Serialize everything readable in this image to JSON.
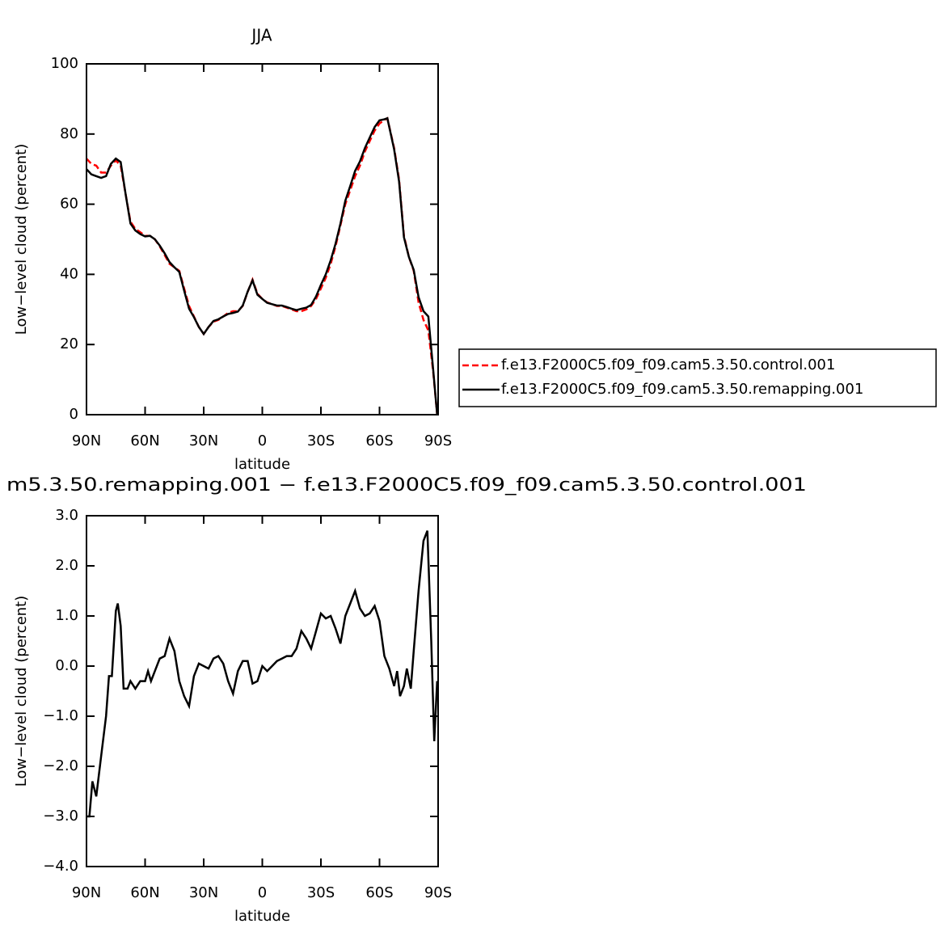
{
  "chart_data": [
    {
      "type": "line",
      "title": "JJA",
      "xlabel": "latitude",
      "ylabel": "Low−level cloud (percent)",
      "x": [
        90,
        87.5,
        85,
        82.5,
        80,
        77.5,
        75,
        72.5,
        70,
        67.5,
        65,
        62.5,
        60,
        57.5,
        55,
        52.5,
        50,
        47.5,
        45,
        42.5,
        40,
        37.5,
        35,
        32.5,
        30,
        27.5,
        25,
        22.5,
        20,
        17.5,
        15,
        12.5,
        10,
        7.5,
        5,
        2.5,
        0,
        -2.5,
        -5,
        -7.5,
        -10,
        -12.5,
        -15,
        -17.5,
        -20,
        -22.5,
        -25,
        -27.5,
        -30,
        -32.5,
        -35,
        -37.5,
        -40,
        -42.5,
        -45,
        -47.5,
        -50,
        -52.5,
        -55,
        -57.5,
        -60,
        -62.5,
        -64,
        -67.5,
        -70,
        -72.5,
        -75,
        -77.5,
        -80,
        -82.5,
        -85,
        -87.5,
        -89.5
      ],
      "series": [
        {
          "name": "f.e13.F2000C5.f09_f09.cam5.3.50.control.001",
          "color": "#ff0000",
          "dash": true,
          "values": [
            73,
            71.5,
            71,
            69,
            69,
            71,
            72.5,
            71,
            63,
            55,
            53,
            52,
            51,
            51,
            50,
            48,
            45.5,
            43,
            42,
            41,
            36,
            31,
            28,
            25,
            23,
            25,
            26.5,
            27,
            28,
            29,
            29.5,
            29.5,
            31,
            35,
            38.5,
            34.5,
            33,
            32,
            31.5,
            31,
            31,
            30.5,
            30,
            29.5,
            29.5,
            30,
            31,
            33,
            36,
            39,
            43,
            48,
            54,
            60,
            64,
            68,
            71,
            75,
            78,
            81,
            83,
            84,
            84.5,
            76,
            67,
            51,
            45,
            41,
            32,
            27,
            24,
            12,
            0
          ]
        },
        {
          "name": "f.e13.F2000C5.f09_f09.cam5.3.50.remapping.001",
          "color": "#000000",
          "dash": false,
          "values": [
            70,
            68.5,
            68,
            67.5,
            68,
            71.5,
            73,
            72,
            63,
            54.5,
            52.5,
            51.5,
            50.8,
            51,
            50,
            48.2,
            46,
            43.5,
            42,
            40.7,
            35.4,
            30.2,
            27.8,
            25,
            23,
            25,
            26.7,
            27.2,
            28,
            28.7,
            29,
            29.4,
            31.1,
            35.1,
            38.3,
            34.2,
            33,
            31.9,
            31.5,
            31.1,
            31.1,
            30.7,
            30.2,
            29.8,
            30.2,
            30.5,
            31.3,
            33.7,
            37,
            40,
            44,
            48.7,
            54.5,
            61,
            65.2,
            69.5,
            72.2,
            76,
            79,
            82,
            83.9,
            84.2,
            84.5,
            75.6,
            66.5,
            50.6,
            45,
            41.3,
            33.5,
            29.5,
            28,
            12.5,
            0
          ]
        }
      ],
      "xlim": [
        90,
        -90
      ],
      "ylim": [
        0,
        100
      ],
      "xticks": [
        {
          "value": 90,
          "label": "90N"
        },
        {
          "value": 60,
          "label": "60N"
        },
        {
          "value": 30,
          "label": "30N"
        },
        0,
        {
          "value": -30,
          "label": "30S"
        },
        {
          "value": -60,
          "label": "60S"
        },
        {
          "value": -90,
          "label": "90S"
        }
      ],
      "yticks": [
        0,
        20,
        40,
        60,
        80,
        100
      ],
      "legend": "right"
    },
    {
      "type": "line",
      "title": "m5.3.50.remapping.001 − f.e13.F2000C5.f09_f09.cam5.3.50.control.001",
      "xlabel": "latitude",
      "ylabel": "Low−level cloud (percent)",
      "x": [
        90,
        88.5,
        87,
        85,
        82.5,
        80,
        78.5,
        77,
        75,
        74,
        72.5,
        71,
        69,
        67.5,
        65,
        62.5,
        60,
        58.5,
        57,
        55,
        52.5,
        50,
        47.5,
        45,
        42.5,
        40,
        37.5,
        35,
        32.5,
        30,
        27.5,
        25,
        22.5,
        20,
        17.5,
        15,
        12.5,
        10,
        7.5,
        5,
        2.5,
        0,
        -2.5,
        -5,
        -7.5,
        -10,
        -12.5,
        -15,
        -17.5,
        -20,
        -22.5,
        -25,
        -27.5,
        -30,
        -32.5,
        -35,
        -37.5,
        -40,
        -42.5,
        -45,
        -47.5,
        -50,
        -52.5,
        -55,
        -57.5,
        -60,
        -62.5,
        -65,
        -67.5,
        -69,
        -70.5,
        -72.5,
        -74,
        -76,
        -77.5,
        -80,
        -82.5,
        -84.5,
        -86.5,
        -88,
        -89.5
      ],
      "series": [
        {
          "color": "#000000",
          "dash": false,
          "values": [
            -3.0,
            -3.0,
            -2.3,
            -2.6,
            -1.8,
            -1.0,
            -0.2,
            -0.2,
            1.1,
            1.25,
            0.8,
            -0.45,
            -0.45,
            -0.3,
            -0.45,
            -0.3,
            -0.3,
            -0.1,
            -0.3,
            -0.1,
            0.15,
            0.2,
            0.55,
            0.3,
            -0.3,
            -0.6,
            -0.8,
            -0.2,
            0.05,
            0.0,
            -0.05,
            0.15,
            0.2,
            0.05,
            -0.3,
            -0.55,
            -0.1,
            0.1,
            0.1,
            -0.35,
            -0.3,
            0.0,
            -0.1,
            0.0,
            0.1,
            0.15,
            0.2,
            0.2,
            0.35,
            0.7,
            0.55,
            0.35,
            0.7,
            1.05,
            0.95,
            1.0,
            0.75,
            0.45,
            1.0,
            1.25,
            1.5,
            1.15,
            1.0,
            1.05,
            1.2,
            0.9,
            0.2,
            -0.05,
            -0.4,
            -0.1,
            -0.6,
            -0.4,
            -0.05,
            -0.45,
            0.3,
            1.5,
            2.5,
            2.7,
            0.5,
            -1.5,
            -0.3
          ]
        }
      ],
      "xlim": [
        90,
        -90
      ],
      "ylim": [
        -4,
        3
      ],
      "xticks": [
        {
          "value": 90,
          "label": "90N"
        },
        {
          "value": 60,
          "label": "60N"
        },
        {
          "value": 30,
          "label": "30N"
        },
        0,
        {
          "value": -30,
          "label": "30S"
        },
        {
          "value": -60,
          "label": "60S"
        },
        {
          "value": -90,
          "label": "90S"
        }
      ],
      "yticks": [
        {
          "value": -4,
          "label": "−4.0"
        },
        {
          "value": -3,
          "label": "−3.0"
        },
        {
          "value": -2,
          "label": "−2.0"
        },
        {
          "value": -1,
          "label": "−1.0"
        },
        {
          "value": 0,
          "label": "0.0"
        },
        {
          "value": 1,
          "label": "1.0"
        },
        {
          "value": 2,
          "label": "2.0"
        },
        {
          "value": 3,
          "label": "3.0"
        }
      ]
    }
  ]
}
